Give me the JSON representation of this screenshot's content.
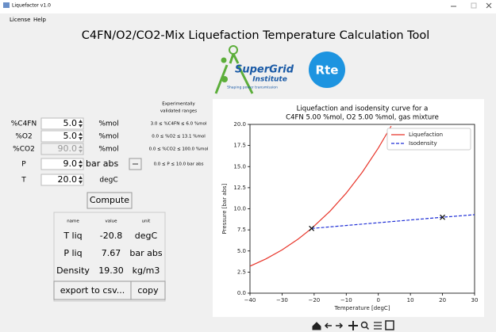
{
  "window": {
    "title": "Liquefactor v1.0",
    "menu": [
      "License",
      "Help"
    ]
  },
  "header": {
    "title": "C4FN/O2/CO2-Mix Liquefaction Temperature Calculation Tool"
  },
  "logos": {
    "supergrid": {
      "name": "SuperGrid",
      "sub": "Institute",
      "tagline": "Shaping power transmission"
    },
    "rte": "Rte"
  },
  "form": {
    "ranges_header": [
      "Experimentally",
      "validated ranges"
    ],
    "rows": [
      {
        "label": "%C4FN",
        "value": "5.0",
        "unit": "%mol",
        "range": "3.0 ≤ %C4FN ≤ 6.0 %mol"
      },
      {
        "label": "%O2",
        "value": "5.0",
        "unit": "%mol",
        "range": "0.0 ≤ %O2 ≤ 13.1 %mol"
      },
      {
        "label": "%CO2",
        "value": "90.0",
        "unit": "%mol",
        "range": "0.0 ≤ %CO2 ≤ 100.0 %mol"
      },
      {
        "label": "P",
        "value": "9.0",
        "unit": "bar abs",
        "range": "0.0 ≤ P ≤ 10.0 bar abs"
      },
      {
        "label": "T",
        "value": "20.0",
        "unit": "degC"
      }
    ],
    "compute": "Compute"
  },
  "results": {
    "columns": [
      "name",
      "value",
      "unit"
    ],
    "rows": [
      [
        "T liq",
        "-20.8",
        "degC"
      ],
      [
        "P liq",
        "7.67",
        "bar abs"
      ],
      [
        "Density",
        "19.30",
        "kg/m3"
      ]
    ],
    "buttons": [
      "export to csv...",
      "copy"
    ]
  },
  "chart_data": {
    "type": "line",
    "title": [
      "Liquefaction and isodensity curve for a",
      "C4FN 5.00 %mol, O2 5.00 %mol, gas mixture"
    ],
    "x_label": "Temperature [degC]",
    "y_label": "Pressure [bar abs]",
    "xlim": [
      -40,
      30
    ],
    "xticks": [
      {
        "value": -40,
        "label": "−40"
      },
      {
        "value": -30,
        "label": "−30"
      },
      {
        "value": -20,
        "label": "−20"
      },
      {
        "value": -10,
        "label": "−10"
      },
      0,
      10,
      20,
      30
    ],
    "ylim": [
      0,
      20
    ],
    "yticks": [
      {
        "value": 0,
        "label": "0.0"
      },
      2.5,
      {
        "value": 5,
        "label": "5.0"
      },
      7.5,
      {
        "value": 10,
        "label": "10.0"
      },
      12.5,
      {
        "value": 15,
        "label": "15.0"
      },
      17.5,
      {
        "value": 20,
        "label": "20.0"
      }
    ],
    "legend": "upper right",
    "series": [
      {
        "name": "Liquefaction",
        "color": "#e8352a",
        "dash": false,
        "x": [
          -40,
          -35,
          -30,
          -25,
          -20.8,
          -15,
          -10,
          -5,
          0,
          4
        ],
        "values": [
          3.2,
          4.07,
          5.13,
          6.41,
          7.67,
          9.74,
          11.86,
          14.33,
          17.2,
          19.8
        ]
      },
      {
        "name": "Isodensity",
        "color": "#1f2fd6",
        "dash": true,
        "x": [
          -20.8,
          20,
          30
        ],
        "values": [
          7.67,
          9.0,
          9.3
        ]
      }
    ],
    "markers": {
      "x": [
        -20.8,
        20
      ],
      "values": [
        7.67,
        9.0
      ],
      "color": "#111"
    }
  }
}
